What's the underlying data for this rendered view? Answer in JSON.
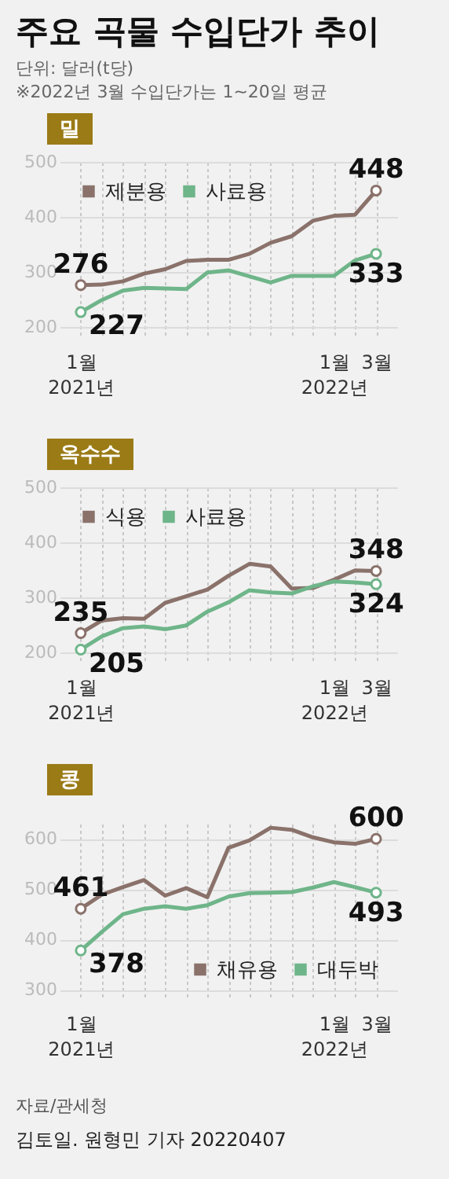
{
  "chart_data": [
    {
      "type": "other",
      "title": "주요 곡물 수입단가 추이",
      "subtitle": "단위: 달러(t당)",
      "annotations": [
        "※2022년 3월 수입단가는 1~20일 평균"
      ]
    },
    {
      "type": "line",
      "title": "밀",
      "categories": [
        "1월\n2021년",
        null,
        null,
        null,
        null,
        null,
        null,
        null,
        null,
        null,
        null,
        null,
        "1월\n2022년",
        null,
        "3월"
      ],
      "ylim": [
        180,
        500
      ],
      "yticks": [
        200,
        300,
        400,
        500
      ],
      "grid": true,
      "legend": "top left",
      "tick_labels": "xy",
      "series": [
        {
          "name": "제분용",
          "color": "#8a726b",
          "values": [
            276,
            277,
            283,
            297,
            305,
            320,
            322,
            322,
            333,
            353,
            365,
            393,
            402,
            404,
            448
          ],
          "value_labels": [
            "276",
            null,
            null,
            null,
            null,
            null,
            null,
            null,
            null,
            null,
            null,
            null,
            null,
            null,
            "448"
          ]
        },
        {
          "name": "사료용",
          "color": "#6fb58a",
          "values": [
            227,
            249,
            266,
            271,
            270,
            269,
            299,
            303,
            292,
            281,
            293,
            293,
            293,
            321,
            333
          ],
          "value_labels": [
            "227",
            null,
            null,
            null,
            null,
            null,
            null,
            null,
            null,
            null,
            null,
            null,
            null,
            null,
            "333"
          ]
        }
      ]
    },
    {
      "type": "line",
      "title": "옥수수",
      "categories": [
        "1월\n2021년",
        null,
        null,
        null,
        null,
        null,
        null,
        null,
        null,
        null,
        null,
        null,
        "1월\n2022년",
        null,
        "3월"
      ],
      "ylim": [
        180,
        500
      ],
      "yticks": [
        200,
        300,
        400,
        500
      ],
      "grid": true,
      "legend": "top left",
      "tick_labels": "xy",
      "series": [
        {
          "name": "식용",
          "color": "#8a726b",
          "values": [
            235,
            258,
            262,
            261,
            290,
            302,
            314,
            339,
            361,
            356,
            316,
            317,
            332,
            349,
            348
          ],
          "value_labels": [
            "235",
            null,
            null,
            null,
            null,
            null,
            null,
            null,
            null,
            null,
            null,
            null,
            null,
            null,
            "348"
          ]
        },
        {
          "name": "사료용",
          "color": "#6fb58a",
          "values": [
            205,
            229,
            244,
            247,
            242,
            249,
            274,
            291,
            313,
            309,
            307,
            320,
            329,
            327,
            324
          ],
          "value_labels": [
            "205",
            null,
            null,
            null,
            null,
            null,
            null,
            null,
            null,
            null,
            null,
            null,
            null,
            null,
            "324"
          ]
        }
      ]
    },
    {
      "type": "line",
      "title": "콩",
      "categories": [
        "1월\n2021년",
        null,
        null,
        null,
        null,
        null,
        null,
        null,
        null,
        null,
        null,
        null,
        "1월\n2022년",
        null,
        "3월"
      ],
      "ylim": [
        280,
        630
      ],
      "yticks": [
        300,
        400,
        500,
        600
      ],
      "grid": true,
      "legend": "bottom right",
      "tick_labels": "xy",
      "annotations": [
        "자료/관세청",
        "김토일. 원형민 기자 20220407"
      ],
      "series": [
        {
          "name": "채유용",
          "color": "#8a726b",
          "values": [
            461,
            489,
            504,
            518,
            487,
            502,
            484,
            582,
            597,
            622,
            618,
            603,
            593,
            590,
            600
          ],
          "value_labels": [
            "461",
            null,
            null,
            null,
            null,
            null,
            null,
            null,
            null,
            null,
            null,
            null,
            null,
            null,
            "600"
          ]
        },
        {
          "name": "대두박",
          "color": "#6fb58a",
          "values": [
            378,
            415,
            450,
            461,
            466,
            461,
            468,
            485,
            492,
            493,
            494,
            503,
            514,
            504,
            493
          ],
          "value_labels": [
            "378",
            null,
            null,
            null,
            null,
            null,
            null,
            null,
            null,
            null,
            null,
            null,
            null,
            null,
            "493"
          ]
        }
      ]
    }
  ]
}
